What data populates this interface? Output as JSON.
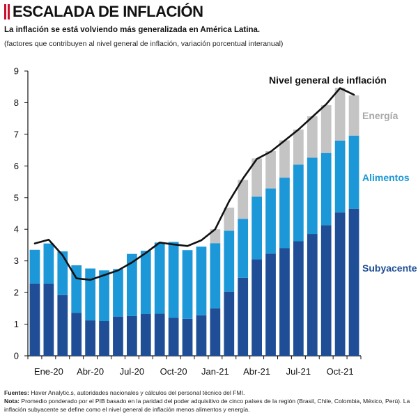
{
  "header": {
    "title": "ESCALADA DE INFLACIÓN",
    "subtitle": "La inflación se está volviendo más generalizada en América Latina.",
    "note": "(factores que contribuyen al nivel general de inflación, variación porcentual interanual)"
  },
  "footer": {
    "sources_label": "Fuentes:",
    "sources_text": "Haver Analytic.s, autoridades nacionales y cálculos del personal técnico del FMI.",
    "note_label": "Nota:",
    "note_text": "Promedio ponderado por el PIB basado en la paridad del poder adquisitivo de cinco países de la región (Brasil, Chile, Colombia, México, Perú). La inflación subyacente se define como el nivel general de inflación menos alimentos y energía."
  },
  "colors": {
    "subyacente": "#1f4e96",
    "alimentos": "#1c98d8",
    "energia": "#c4c4c4",
    "headline": "#111111",
    "title_bars": "#c8102e"
  },
  "chart_data": {
    "type": "bar",
    "stacked": true,
    "categories": [
      "Dic-19",
      "Ene-20",
      "Feb-20",
      "Mar-20",
      "Abr-20",
      "May-20",
      "Jun-20",
      "Jul-20",
      "Ago-20",
      "Sep-20",
      "Oct-20",
      "Nov-20",
      "Dic-20",
      "Ene-21",
      "Feb-21",
      "Mar-21",
      "Abr-21",
      "May-21",
      "Jun-21",
      "Jul-21",
      "Ago-21",
      "Sep-21",
      "Oct-21",
      "Nov-21"
    ],
    "tick_labels": [
      "Ene-20",
      "Abr-20",
      "Jul-20",
      "Oct-20",
      "Jan-21",
      "Abr-21",
      "Jul-21",
      "Oct-21"
    ],
    "tick_label_indices": [
      1,
      4,
      7,
      10,
      13,
      16,
      19,
      22
    ],
    "series": [
      {
        "name": "Subyacente",
        "label": "Subyacente",
        "color_key": "subyacente",
        "values": [
          2.28,
          2.28,
          1.92,
          1.36,
          1.12,
          1.1,
          1.24,
          1.26,
          1.32,
          1.33,
          1.2,
          1.17,
          1.28,
          1.5,
          2.03,
          2.47,
          3.05,
          3.23,
          3.4,
          3.62,
          3.85,
          4.13,
          4.53,
          4.65
        ]
      },
      {
        "name": "Alimentos",
        "label": "Alimentos",
        "color_key": "alimentos",
        "values": [
          1.07,
          1.27,
          1.38,
          1.5,
          1.64,
          1.6,
          1.5,
          1.96,
          2.0,
          2.25,
          2.4,
          2.17,
          2.17,
          2.06,
          1.92,
          1.86,
          1.98,
          2.06,
          2.23,
          2.42,
          2.41,
          2.28,
          2.27,
          2.31
        ]
      },
      {
        "name": "Energía",
        "label": "Energía",
        "color_key": "energia",
        "values": [
          0.0,
          0.0,
          0.0,
          0.0,
          0.0,
          0.0,
          0.0,
          0.0,
          0.0,
          0.0,
          0.0,
          0.0,
          0.0,
          0.44,
          0.73,
          1.23,
          1.21,
          1.18,
          1.18,
          1.11,
          1.31,
          1.51,
          1.67,
          1.27
        ]
      }
    ],
    "headline": {
      "name": "Nivel general de inflación",
      "label": "Nivel general de inflación",
      "values": [
        3.55,
        3.67,
        3.18,
        2.45,
        2.4,
        2.55,
        2.7,
        2.95,
        3.25,
        3.58,
        3.52,
        3.47,
        3.65,
        4.0,
        4.88,
        5.6,
        6.22,
        6.45,
        6.8,
        7.15,
        7.55,
        7.95,
        8.46,
        8.25
      ]
    },
    "ylim": [
      0,
      9
    ],
    "yticks": [
      0,
      1,
      2,
      3,
      4,
      5,
      6,
      7,
      8,
      9
    ],
    "xlabel": "",
    "ylabel": "",
    "grid": false
  }
}
